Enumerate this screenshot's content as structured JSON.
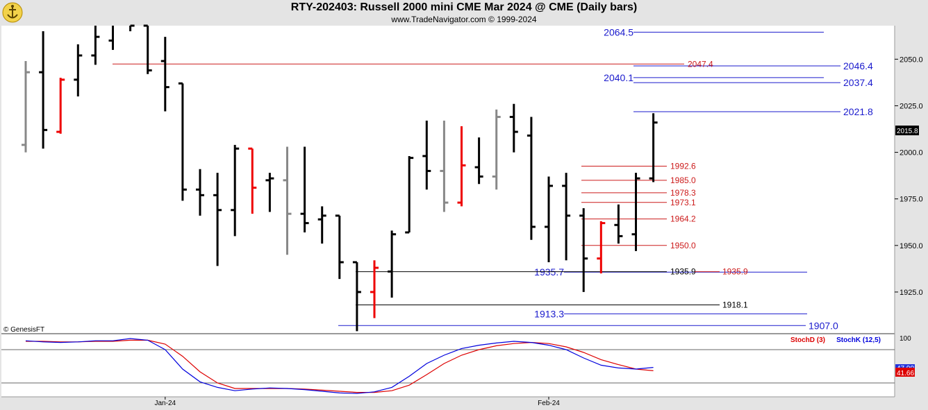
{
  "header": {
    "title": "RTY-202403:  Russell 2000 mini CME Mar 2024 @ CME  (Daily bars)",
    "subtitle": "www.TradeNavigator.com © 1999-2024"
  },
  "watermark": "© GenesisFT",
  "colors": {
    "up_bar": "#000000",
    "down_bar": "#ee0000",
    "neutral_bar": "#888888",
    "blue_level": "#1a1acd",
    "red_level": "#cc1a1a",
    "stoch_d": "#dd0000",
    "stoch_k": "#0000dd",
    "price_tag_bg": "#000000",
    "stoch_tag_bg": "#dd0000"
  },
  "chart_data": {
    "type": "ohlc",
    "price_axis": {
      "min": 1903,
      "max": 2068,
      "ticks": [
        2050.0,
        2025.0,
        2000.0,
        1975.0,
        1950.0,
        1925.0
      ]
    },
    "x_labels": [
      {
        "index": 8,
        "label": "Jan-24"
      },
      {
        "index": 30,
        "label": "Feb-24"
      }
    ],
    "bars": [
      {
        "o": 2004,
        "h": 2049,
        "l": 2000,
        "c": 2043,
        "col": "gray"
      },
      {
        "o": 2043,
        "h": 2065,
        "l": 2002,
        "c": 2012,
        "col": "black"
      },
      {
        "o": 2011,
        "h": 2040,
        "l": 2010,
        "c": 2039,
        "col": "red"
      },
      {
        "o": 2039,
        "h": 2058,
        "l": 2030,
        "c": 2052,
        "col": "black"
      },
      {
        "o": 2052,
        "h": 2082,
        "l": 2047,
        "c": 2062,
        "col": "black"
      },
      {
        "o": 2060,
        "h": 2080,
        "l": 2055,
        "c": 2075,
        "col": "black"
      },
      {
        "o": 2071,
        "h": 2085,
        "l": 2065,
        "c": 2068,
        "col": "black"
      },
      {
        "o": 2068,
        "h": 2068,
        "l": 2042,
        "c": 2044,
        "col": "black"
      },
      {
        "o": 2049,
        "h": 2062,
        "l": 2022,
        "c": 2035,
        "col": "black"
      },
      {
        "o": 2037,
        "h": 2037,
        "l": 1974,
        "c": 1980,
        "col": "black"
      },
      {
        "o": 1980,
        "h": 1991,
        "l": 1966,
        "c": 1977,
        "col": "black"
      },
      {
        "o": 1977,
        "h": 1989,
        "l": 1939,
        "c": 1969,
        "col": "black"
      },
      {
        "o": 1969,
        "h": 2004,
        "l": 1955,
        "c": 2002,
        "col": "black"
      },
      {
        "o": 2002,
        "h": 2002,
        "l": 1967,
        "c": 1981,
        "col": "red"
      },
      {
        "o": 1985,
        "h": 1989,
        "l": 1968,
        "c": 1986,
        "col": "black"
      },
      {
        "o": 1985,
        "h": 2003,
        "l": 1945,
        "c": 1967,
        "col": "gray"
      },
      {
        "o": 1967,
        "h": 2003,
        "l": 1957,
        "c": 1962,
        "col": "black"
      },
      {
        "o": 1964,
        "h": 1971,
        "l": 1951,
        "c": 1966,
        "col": "black"
      },
      {
        "o": 1966,
        "h": 1966,
        "l": 1932,
        "c": 1941,
        "col": "black"
      },
      {
        "o": 1941,
        "h": 1941,
        "l": 1904,
        "c": 1925,
        "col": "black"
      },
      {
        "o": 1925,
        "h": 1942,
        "l": 1911,
        "c": 1938,
        "col": "red"
      },
      {
        "o": 1936,
        "h": 1958,
        "l": 1922,
        "c": 1956,
        "col": "black"
      },
      {
        "o": 1957,
        "h": 1998,
        "l": 1957,
        "c": 1997,
        "col": "black"
      },
      {
        "o": 1998,
        "h": 2017,
        "l": 1980,
        "c": 1990,
        "col": "black"
      },
      {
        "o": 1990,
        "h": 2017,
        "l": 1968,
        "c": 1973,
        "col": "gray"
      },
      {
        "o": 1973,
        "h": 2014,
        "l": 1971,
        "c": 1993,
        "col": "red"
      },
      {
        "o": 1992,
        "h": 2008,
        "l": 1983,
        "c": 1987,
        "col": "black"
      },
      {
        "o": 1987,
        "h": 2023,
        "l": 1980,
        "c": 2019,
        "col": "gray"
      },
      {
        "o": 2019,
        "h": 2026,
        "l": 2000,
        "c": 2011,
        "col": "black"
      },
      {
        "o": 2009,
        "h": 2019,
        "l": 1953,
        "c": 1960,
        "col": "black"
      },
      {
        "o": 1960,
        "h": 1987,
        "l": 1941,
        "c": 1982,
        "col": "black"
      },
      {
        "o": 1982,
        "h": 1989,
        "l": 1942,
        "c": 1966,
        "col": "black"
      },
      {
        "o": 1966,
        "h": 1970,
        "l": 1925,
        "c": 1943,
        "col": "black"
      },
      {
        "o": 1943,
        "h": 1963,
        "l": 1935,
        "c": 1962,
        "col": "red"
      },
      {
        "o": 1961,
        "h": 1972,
        "l": 1951,
        "c": 1955,
        "col": "black"
      },
      {
        "o": 1956,
        "h": 1989,
        "l": 1947,
        "c": 1986,
        "col": "black"
      },
      {
        "o": 1986,
        "h": 2021,
        "l": 1984,
        "c": 2016,
        "col": "black"
      }
    ],
    "levels": [
      {
        "price": 2064.5,
        "label": "2064.5",
        "color": "blue",
        "x1": 912,
        "x2": 1186,
        "lx": 912,
        "anchor": "end",
        "ldy": 5
      },
      {
        "price": 2046.4,
        "label": "2046.4",
        "color": "blue",
        "x1": 912,
        "x2": 1210,
        "lx": 1214,
        "anchor": "start",
        "ldy": 5
      },
      {
        "price": 2047.4,
        "label": "2047.4",
        "color": "red",
        "x1": 162,
        "x2": 985,
        "lx": 990,
        "anchor": "start",
        "ldy": 4
      },
      {
        "price": 2040.1,
        "label": "2040.1",
        "color": "blue",
        "x1": 912,
        "x2": 1186,
        "lx": 912,
        "anchor": "end",
        "ldy": 5
      },
      {
        "price": 2037.4,
        "label": "2037.4",
        "color": "blue",
        "x1": 912,
        "x2": 1210,
        "lx": 1214,
        "anchor": "start",
        "ldy": 5
      },
      {
        "price": 2021.8,
        "label": "2021.8",
        "color": "blue",
        "x1": 912,
        "x2": 1210,
        "lx": 1214,
        "anchor": "start",
        "ldy": 5
      },
      {
        "price": 1992.6,
        "label": "1992.6",
        "color": "red",
        "x1": 837,
        "x2": 960,
        "lx": 965,
        "anchor": "start",
        "ldy": 4
      },
      {
        "price": 1985.0,
        "label": "1985.0",
        "color": "red",
        "x1": 837,
        "x2": 960,
        "lx": 965,
        "anchor": "start",
        "ldy": 4
      },
      {
        "price": 1978.3,
        "label": "1978.3",
        "color": "red",
        "x1": 837,
        "x2": 960,
        "lx": 965,
        "anchor": "start",
        "ldy": 4
      },
      {
        "price": 1973.1,
        "label": "1973.1",
        "color": "red",
        "x1": 837,
        "x2": 960,
        "lx": 965,
        "anchor": "start",
        "ldy": 4
      },
      {
        "price": 1964.2,
        "label": "1964.2",
        "color": "red",
        "x1": 837,
        "x2": 960,
        "lx": 965,
        "anchor": "start",
        "ldy": 4
      },
      {
        "price": 1950.0,
        "label": "1950.0",
        "color": "red",
        "x1": 837,
        "x2": 960,
        "lx": 965,
        "anchor": "start",
        "ldy": 4
      },
      {
        "price": 1935.7,
        "label": "1935.7",
        "color": "blue",
        "x1": 812,
        "x2": 1162,
        "lx": 812,
        "anchor": "end",
        "ldy": 5
      },
      {
        "price": 1935.9,
        "label": "1935.9",
        "color": "black",
        "x1": 512,
        "x2": 960,
        "lx": 965,
        "anchor": "start",
        "ldy": 4
      },
      {
        "price": 1935.9,
        "label": "1935.9",
        "color": "red",
        "x1": 1000,
        "x2": 1036,
        "lx": 1040,
        "anchor": "start",
        "ldy": 4
      },
      {
        "price": 1918.1,
        "label": "1918.1",
        "color": "black",
        "x1": 512,
        "x2": 1036,
        "lx": 1040,
        "anchor": "start",
        "ldy": 4
      },
      {
        "price": 1913.3,
        "label": "1913.3",
        "color": "blue",
        "x1": 812,
        "x2": 1162,
        "lx": 812,
        "anchor": "end",
        "ldy": 5
      },
      {
        "price": 1907.0,
        "label": "1907.0",
        "color": "blue",
        "x1": 487,
        "x2": 1160,
        "lx": 1164,
        "anchor": "start",
        "ldy": 5
      }
    ],
    "last_price_tag": "2015.8",
    "stochastic": {
      "axis_label": "100",
      "legend_d": "StochD (3)",
      "legend_k": "StochK (12,5)",
      "tag_k": "47.90",
      "tag_d": "41.66",
      "k": [
        96,
        94,
        93,
        94,
        96,
        96,
        100,
        97,
        80,
        45,
        22,
        12,
        6,
        9,
        11,
        10,
        8,
        5,
        2,
        1,
        4,
        12,
        32,
        55,
        70,
        82,
        88,
        92,
        95,
        93,
        88,
        80,
        65,
        52,
        47,
        45,
        48
      ],
      "d": [
        95,
        95,
        94,
        94,
        95,
        95,
        97,
        97,
        90,
        68,
        40,
        20,
        10,
        10,
        10,
        10,
        9,
        7,
        5,
        3,
        3,
        6,
        16,
        35,
        55,
        70,
        80,
        87,
        91,
        93,
        91,
        85,
        75,
        62,
        53,
        45,
        42
      ]
    }
  }
}
